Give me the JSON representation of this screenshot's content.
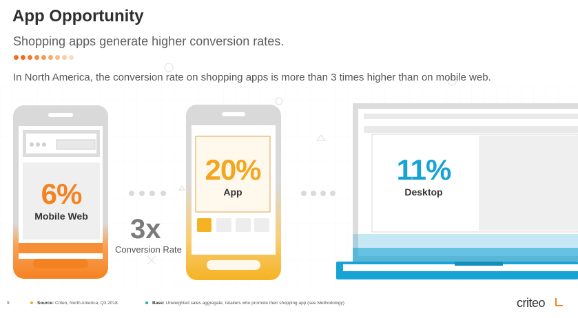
{
  "header": {
    "title": "App Opportunity",
    "subtitle": "Shopping apps generate higher conversion rates.",
    "lead": "In North America, the conversion rate on shopping apps is more than 3 times higher than on mobile web."
  },
  "stats": {
    "mobile": {
      "value": "6%",
      "label": "Mobile Web",
      "color": "#f58220"
    },
    "app": {
      "value": "20%",
      "label": "App",
      "color": "#f5a61f"
    },
    "desktop": {
      "value": "11%",
      "label": "Desktop",
      "color": "#17a3d3"
    }
  },
  "comparison": {
    "multiplier": "3x",
    "label": "Conversion Rate"
  },
  "footer": {
    "page_number": "9",
    "source_label": "Source:",
    "source_text": "Criteo, North America, Q3 2018.",
    "base_label": "Base:",
    "base_text": "Unweighted sales aggregate, retailers who promote their shopping app (see Methodology)"
  },
  "brand": {
    "logo_text": "criteo",
    "accent": "#f58220"
  },
  "colors": {
    "device_gray": "#d7d7d7",
    "screen_gray": "#efefef",
    "teal": "#17a3d3",
    "orange": "#f58220",
    "yellow": "#f5a61f"
  }
}
